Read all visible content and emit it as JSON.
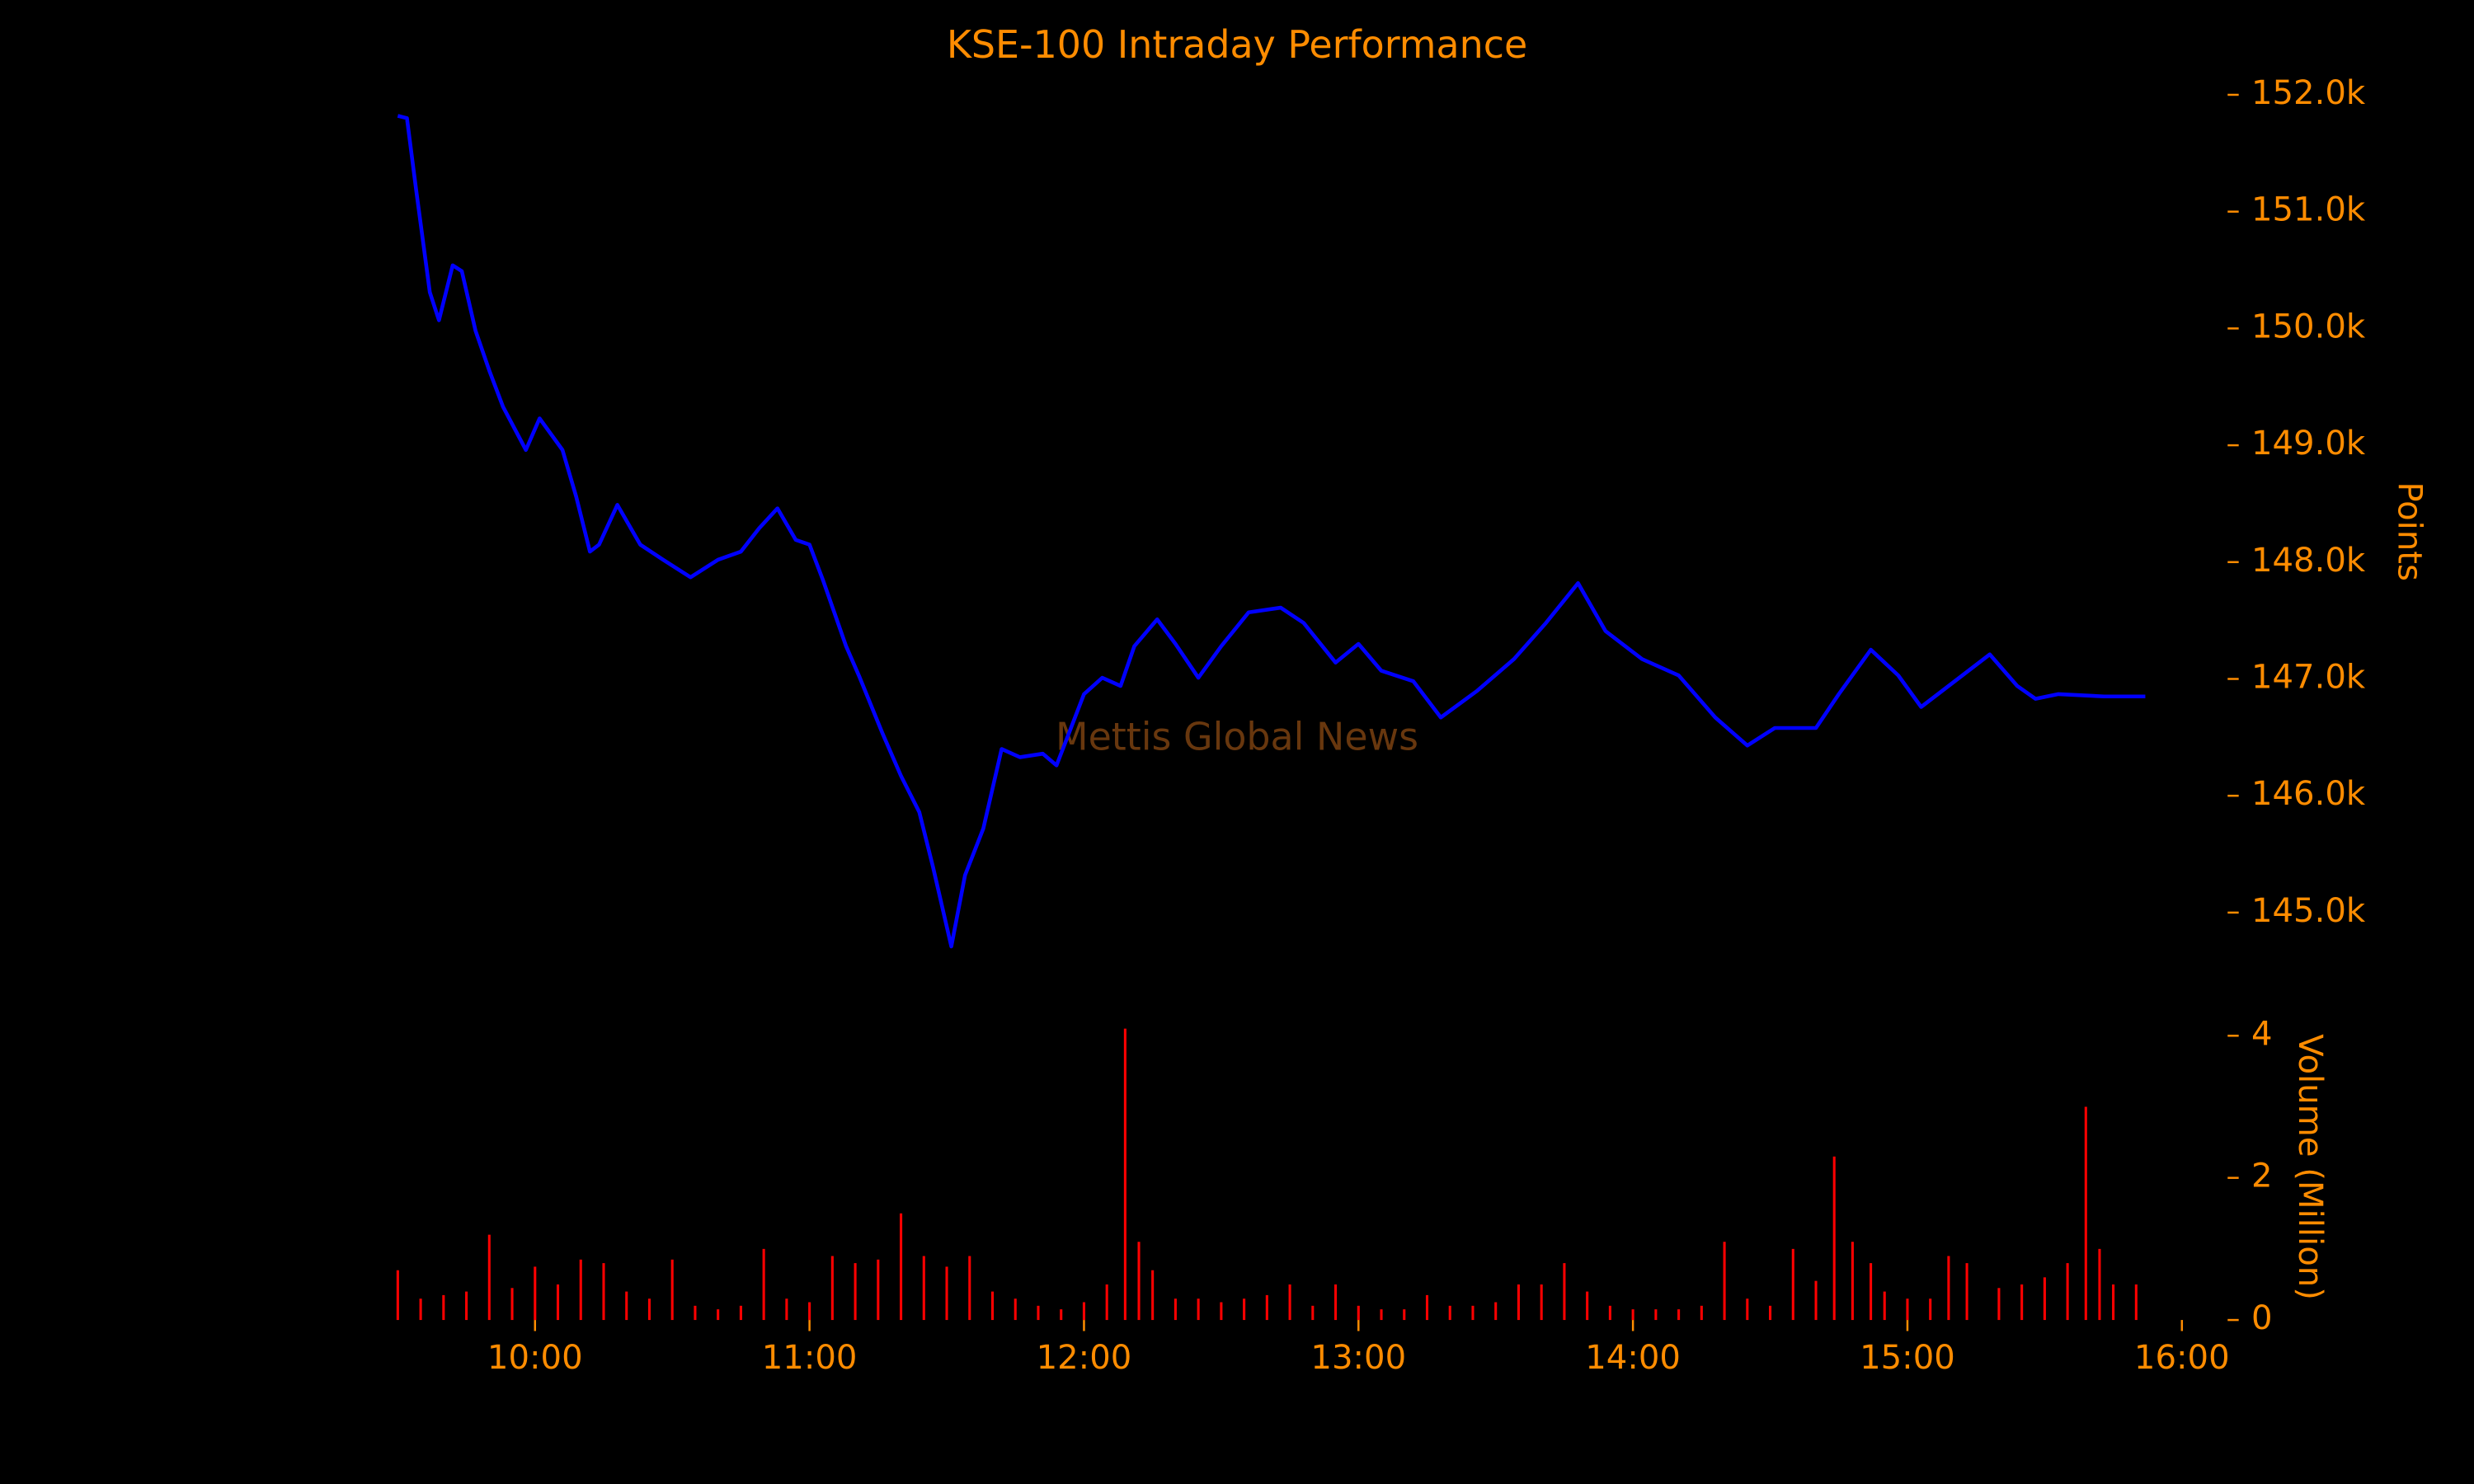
{
  "chart_data": [
    {
      "type": "line",
      "title": "KSE-100 Intraday Performance",
      "y_label": "Points",
      "annotation": "Mettis Global News",
      "xlim": [
        "09:30",
        "16:00"
      ],
      "x": [
        "09:30",
        "09:32",
        "09:34",
        "09:37",
        "09:39",
        "09:42",
        "09:44",
        "09:47",
        "09:50",
        "09:53",
        "09:58",
        "10:01",
        "10:06",
        "10:09",
        "10:12",
        "10:14",
        "10:18",
        "10:23",
        "10:28",
        "10:34",
        "10:40",
        "10:45",
        "10:49",
        "10:53",
        "10:57",
        "11:00",
        "11:03",
        "11:08",
        "11:11",
        "11:16",
        "11:20",
        "11:24",
        "11:27",
        "11:31",
        "11:34",
        "11:38",
        "11:42",
        "11:46",
        "11:51",
        "11:54",
        "12:00",
        "12:04",
        "12:08",
        "12:11",
        "12:16",
        "12:20",
        "12:25",
        "12:30",
        "12:36",
        "12:43",
        "12:48",
        "12:55",
        "13:00",
        "13:05",
        "13:12",
        "13:18",
        "13:26",
        "13:34",
        "13:41",
        "13:48",
        "13:54",
        "14:02",
        "14:10",
        "14:18",
        "14:25",
        "14:31",
        "14:40",
        "14:45",
        "14:52",
        "14:58",
        "15:03",
        "15:12",
        "15:18",
        "15:24",
        "15:28",
        "15:33",
        "15:43",
        "15:52"
      ],
      "series": [
        {
          "name": "KSE-100",
          "color": "#0000ff",
          "values": [
            151.82,
            151.8,
            151.19,
            150.31,
            150.07,
            150.54,
            150.49,
            149.98,
            149.64,
            149.33,
            148.96,
            149.23,
            148.96,
            148.56,
            148.09,
            148.15,
            148.49,
            148.15,
            148.02,
            147.87,
            148.02,
            148.09,
            148.29,
            148.46,
            148.19,
            148.15,
            147.84,
            147.28,
            147.01,
            146.53,
            146.17,
            145.86,
            145.39,
            144.71,
            145.32,
            145.72,
            146.4,
            146.33,
            146.36,
            146.26,
            146.87,
            147.01,
            146.94,
            147.28,
            147.51,
            147.3,
            147.01,
            147.28,
            147.57,
            147.61,
            147.48,
            147.14,
            147.3,
            147.07,
            146.98,
            146.67,
            146.9,
            147.17,
            147.48,
            147.82,
            147.41,
            147.17,
            147.03,
            146.67,
            146.43,
            146.58,
            146.58,
            146.87,
            147.25,
            147.03,
            146.76,
            147.03,
            147.21,
            146.94,
            146.83,
            146.87,
            146.85,
            146.85
          ]
        }
      ],
      "ylim": [
        144.55,
        152.15
      ],
      "yticks": [
        {
          "value": 145,
          "label": "145.0k"
        },
        {
          "value": 146,
          "label": "146.0k"
        },
        {
          "value": 147,
          "label": "147.0k"
        },
        {
          "value": 148,
          "label": "148.0k"
        },
        {
          "value": 149,
          "label": "149.0k"
        },
        {
          "value": 150,
          "label": "150.0k"
        },
        {
          "value": 151,
          "label": "151.0k"
        },
        {
          "value": 152,
          "label": "152.0k"
        }
      ],
      "grid": false
    },
    {
      "type": "bar",
      "y_label": "Volume (Million)",
      "xlim": [
        "09:30",
        "16:00"
      ],
      "xticks": [
        "10:00",
        "11:00",
        "12:00",
        "13:00",
        "14:00",
        "15:00",
        "16:00"
      ],
      "x": [
        "09:30",
        "09:35",
        "09:40",
        "09:45",
        "09:50",
        "09:55",
        "10:00",
        "10:05",
        "10:10",
        "10:15",
        "10:20",
        "10:25",
        "10:30",
        "10:35",
        "10:40",
        "10:45",
        "10:50",
        "10:55",
        "11:00",
        "11:05",
        "11:10",
        "11:15",
        "11:20",
        "11:25",
        "11:30",
        "11:35",
        "11:40",
        "11:45",
        "11:50",
        "11:55",
        "12:00",
        "12:05",
        "12:09",
        "12:12",
        "12:15",
        "12:20",
        "12:25",
        "12:30",
        "12:35",
        "12:40",
        "12:45",
        "12:50",
        "12:55",
        "13:00",
        "13:05",
        "13:10",
        "13:15",
        "13:20",
        "13:25",
        "13:30",
        "13:35",
        "13:40",
        "13:45",
        "13:50",
        "13:55",
        "14:00",
        "14:05",
        "14:10",
        "14:15",
        "14:20",
        "14:25",
        "14:30",
        "14:35",
        "14:40",
        "14:44",
        "14:48",
        "14:52",
        "14:55",
        "15:00",
        "15:05",
        "15:09",
        "15:13",
        "15:20",
        "15:25",
        "15:30",
        "15:35",
        "15:39",
        "15:42",
        "15:45",
        "15:50"
      ],
      "series": [
        {
          "name": "Volume",
          "color": "#ff0000",
          "values": [
            0.7,
            0.3,
            0.35,
            0.4,
            1.2,
            0.45,
            0.75,
            0.5,
            0.85,
            0.8,
            0.4,
            0.3,
            0.85,
            0.2,
            0.15,
            0.2,
            1.0,
            0.3,
            0.25,
            0.9,
            0.8,
            0.85,
            1.5,
            0.9,
            0.75,
            0.9,
            0.4,
            0.3,
            0.2,
            0.15,
            0.25,
            0.5,
            4.1,
            1.1,
            0.7,
            0.3,
            0.3,
            0.25,
            0.3,
            0.35,
            0.5,
            0.2,
            0.5,
            0.2,
            0.15,
            0.15,
            0.35,
            0.2,
            0.2,
            0.25,
            0.5,
            0.5,
            0.8,
            0.4,
            0.2,
            0.15,
            0.15,
            0.15,
            0.2,
            1.1,
            0.3,
            0.2,
            1.0,
            0.55,
            2.3,
            1.1,
            0.8,
            0.4,
            0.3,
            0.3,
            0.9,
            0.8,
            0.45,
            0.5,
            0.6,
            0.8,
            3.0,
            1.0,
            0.5,
            0.5
          ]
        }
      ],
      "ylim": [
        0,
        4.15
      ],
      "yticks": [
        0,
        2,
        4
      ],
      "grid": false
    }
  ]
}
